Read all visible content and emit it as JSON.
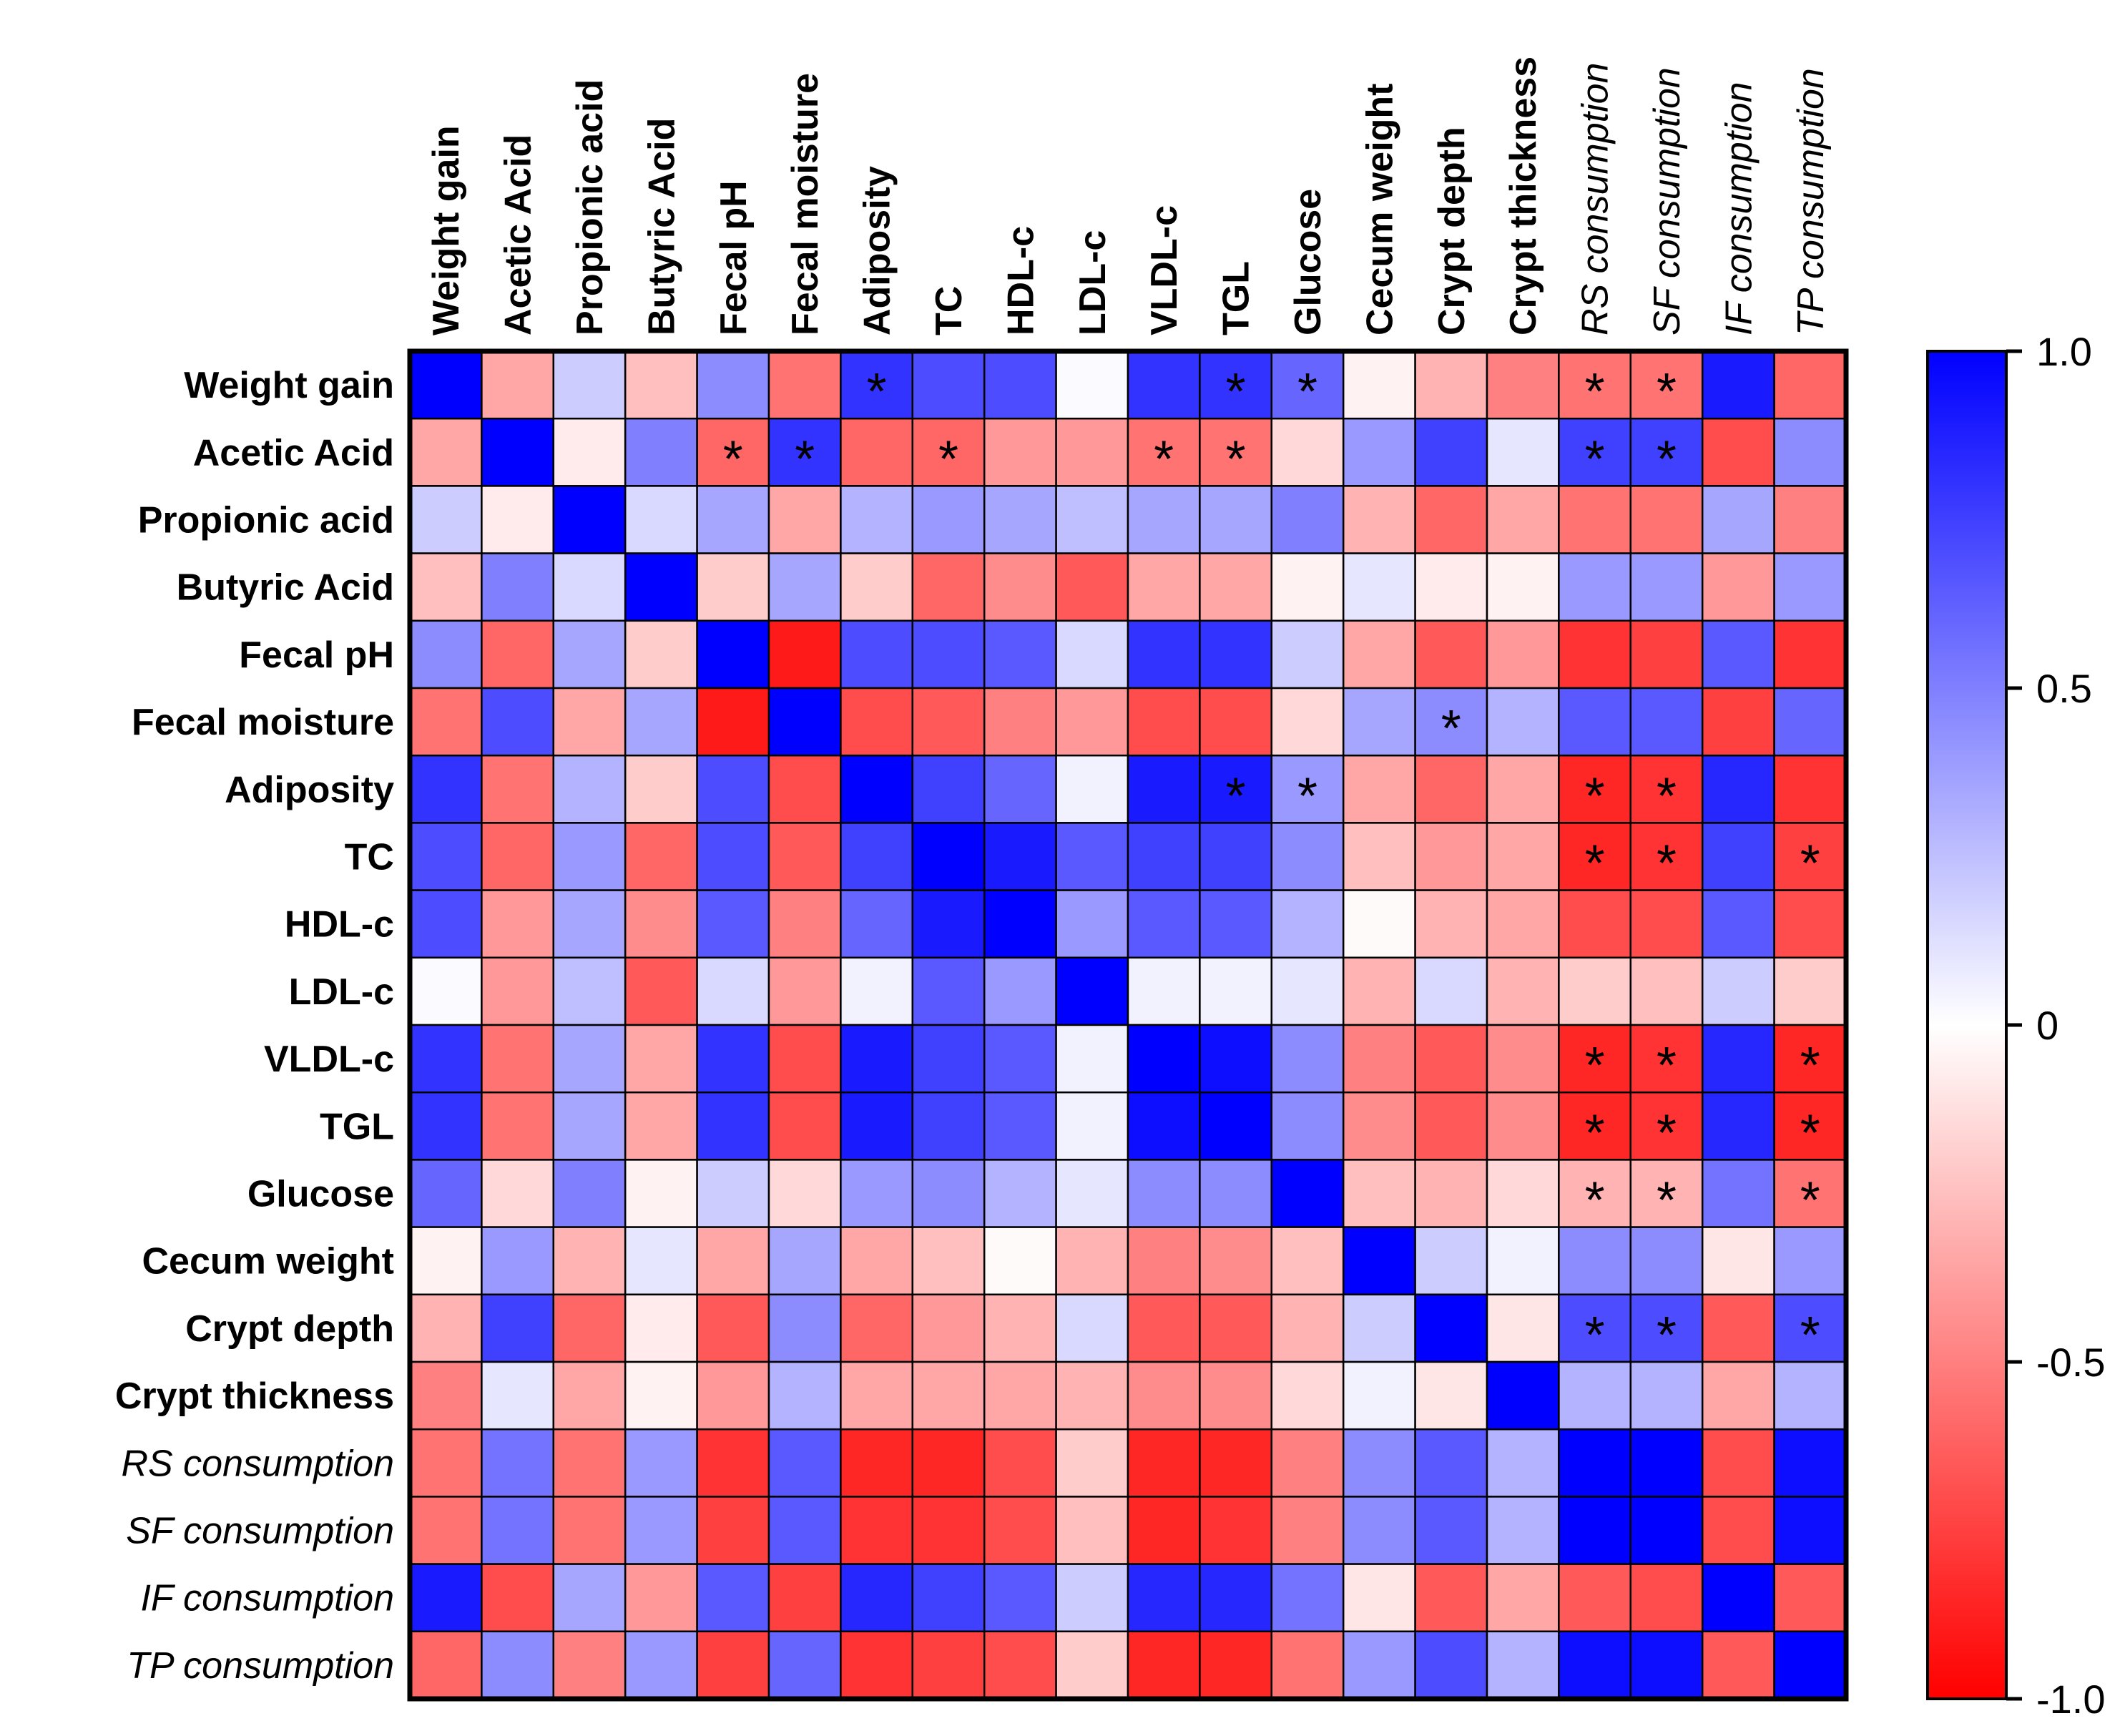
{
  "chart_data": {
    "type": "heatmap",
    "title": "",
    "labels": [
      "Weight gain",
      "Acetic Acid",
      "Propionic acid",
      "Butyric Acid",
      "Fecal pH",
      "Fecal moisture",
      "Adiposity",
      "TC",
      "HDL-c",
      "LDL-c",
      "VLDL-c",
      "TGL",
      "Glucose",
      "Cecum weight",
      "Crypt depth",
      "Crypt thickness",
      "RS consumption",
      "SF consumption",
      "IF consumption",
      "TP consumption"
    ],
    "italic_labels": [
      "RS consumption",
      "SF consumption",
      "IF consumption",
      "TP consumption"
    ],
    "values": [
      [
        1.0,
        -0.35,
        0.2,
        -0.25,
        0.45,
        -0.55,
        0.8,
        0.7,
        0.7,
        0.02,
        0.8,
        0.8,
        0.6,
        -0.05,
        -0.3,
        -0.5,
        -0.55,
        -0.55,
        0.9,
        -0.6
      ],
      [
        -0.35,
        1.0,
        -0.08,
        0.5,
        -0.6,
        0.8,
        -0.6,
        -0.6,
        -0.4,
        -0.4,
        -0.55,
        -0.55,
        -0.15,
        0.4,
        0.75,
        0.1,
        0.75,
        0.75,
        -0.7,
        0.45
      ],
      [
        0.2,
        -0.08,
        1.0,
        0.15,
        0.35,
        -0.35,
        0.3,
        0.4,
        0.35,
        0.25,
        0.35,
        0.35,
        0.5,
        -0.3,
        -0.6,
        -0.35,
        -0.55,
        -0.55,
        0.35,
        -0.5
      ],
      [
        -0.25,
        0.5,
        0.15,
        1.0,
        -0.2,
        0.35,
        -0.2,
        -0.6,
        -0.45,
        -0.65,
        -0.35,
        -0.35,
        -0.05,
        0.1,
        -0.08,
        -0.05,
        0.4,
        0.4,
        -0.4,
        0.4
      ],
      [
        0.45,
        -0.6,
        0.35,
        -0.2,
        1.0,
        -0.9,
        0.7,
        0.7,
        0.65,
        0.15,
        0.8,
        0.8,
        0.2,
        -0.35,
        -0.65,
        -0.4,
        -0.8,
        -0.75,
        0.65,
        -0.8
      ],
      [
        -0.55,
        0.7,
        -0.35,
        0.35,
        -0.9,
        1.0,
        -0.7,
        -0.65,
        -0.5,
        -0.4,
        -0.7,
        -0.7,
        -0.15,
        0.35,
        0.45,
        0.3,
        0.65,
        0.65,
        -0.75,
        0.6
      ],
      [
        0.8,
        -0.55,
        0.3,
        -0.2,
        0.7,
        -0.7,
        1.0,
        0.75,
        0.6,
        0.05,
        0.9,
        0.9,
        0.4,
        -0.35,
        -0.6,
        -0.35,
        -0.85,
        -0.8,
        0.85,
        -0.8
      ],
      [
        0.7,
        -0.6,
        0.4,
        -0.6,
        0.7,
        -0.65,
        0.75,
        1.0,
        0.9,
        0.65,
        0.75,
        0.75,
        0.45,
        -0.25,
        -0.4,
        -0.35,
        -0.85,
        -0.8,
        0.75,
        -0.75
      ],
      [
        0.7,
        -0.4,
        0.35,
        -0.45,
        0.65,
        -0.5,
        0.6,
        0.9,
        1.0,
        0.4,
        0.65,
        0.65,
        0.3,
        -0.02,
        -0.3,
        -0.35,
        -0.7,
        -0.7,
        0.65,
        -0.7
      ],
      [
        0.02,
        -0.4,
        0.25,
        -0.65,
        0.15,
        -0.4,
        0.05,
        0.65,
        0.4,
        1.0,
        0.05,
        0.05,
        0.1,
        -0.3,
        0.15,
        -0.3,
        -0.2,
        -0.25,
        0.2,
        -0.2
      ],
      [
        0.8,
        -0.55,
        0.35,
        -0.35,
        0.8,
        -0.7,
        0.9,
        0.75,
        0.65,
        0.05,
        1.0,
        0.95,
        0.45,
        -0.5,
        -0.65,
        -0.45,
        -0.85,
        -0.8,
        0.85,
        -0.85
      ],
      [
        0.8,
        -0.55,
        0.35,
        -0.35,
        0.8,
        -0.7,
        0.9,
        0.75,
        0.65,
        0.05,
        0.95,
        1.0,
        0.45,
        -0.45,
        -0.65,
        -0.45,
        -0.85,
        -0.8,
        0.85,
        -0.85
      ],
      [
        0.6,
        -0.15,
        0.5,
        -0.05,
        0.2,
        -0.15,
        0.4,
        0.45,
        0.3,
        0.1,
        0.45,
        0.45,
        1.0,
        -0.25,
        -0.3,
        -0.15,
        -0.3,
        -0.3,
        0.55,
        -0.55
      ],
      [
        -0.05,
        0.4,
        -0.3,
        0.1,
        -0.35,
        0.35,
        -0.35,
        -0.25,
        -0.02,
        -0.3,
        -0.5,
        -0.45,
        -0.25,
        1.0,
        0.2,
        0.05,
        0.45,
        0.45,
        -0.1,
        0.4
      ],
      [
        -0.3,
        0.75,
        -0.6,
        -0.08,
        -0.65,
        0.45,
        -0.6,
        -0.4,
        -0.3,
        0.15,
        -0.65,
        -0.65,
        -0.3,
        0.2,
        1.0,
        -0.1,
        0.7,
        0.7,
        -0.65,
        0.7
      ],
      [
        -0.5,
        0.1,
        -0.35,
        -0.05,
        -0.4,
        0.3,
        -0.35,
        -0.35,
        -0.35,
        -0.3,
        -0.45,
        -0.45,
        -0.15,
        0.05,
        -0.1,
        1.0,
        0.3,
        0.3,
        -0.35,
        0.3
      ],
      [
        -0.55,
        0.55,
        -0.55,
        0.4,
        -0.8,
        0.65,
        -0.85,
        -0.85,
        -0.7,
        -0.2,
        -0.85,
        -0.85,
        -0.5,
        0.45,
        0.65,
        0.3,
        1.0,
        1.0,
        -0.7,
        0.95
      ],
      [
        -0.55,
        0.55,
        -0.55,
        0.4,
        -0.75,
        0.65,
        -0.8,
        -0.8,
        -0.7,
        -0.25,
        -0.85,
        -0.8,
        -0.5,
        0.45,
        0.65,
        0.3,
        1.0,
        1.0,
        -0.7,
        0.95
      ],
      [
        0.9,
        -0.7,
        0.35,
        -0.4,
        0.65,
        -0.75,
        0.85,
        0.75,
        0.65,
        0.2,
        0.85,
        0.85,
        0.55,
        -0.1,
        -0.65,
        -0.35,
        -0.65,
        -0.7,
        1.0,
        -0.65
      ],
      [
        -0.6,
        0.45,
        -0.5,
        0.4,
        -0.75,
        0.6,
        -0.8,
        -0.75,
        -0.7,
        -0.2,
        -0.85,
        -0.85,
        -0.55,
        0.4,
        0.7,
        0.3,
        0.95,
        0.95,
        -0.65,
        1.0
      ]
    ],
    "significant_marker": "*",
    "significant_cells": [
      [
        0,
        6
      ],
      [
        0,
        11
      ],
      [
        0,
        12
      ],
      [
        0,
        16
      ],
      [
        0,
        17
      ],
      [
        1,
        4
      ],
      [
        1,
        5
      ],
      [
        1,
        7
      ],
      [
        1,
        10
      ],
      [
        1,
        11
      ],
      [
        1,
        16
      ],
      [
        1,
        17
      ],
      [
        5,
        14
      ],
      [
        6,
        11
      ],
      [
        6,
        12
      ],
      [
        6,
        16
      ],
      [
        6,
        17
      ],
      [
        7,
        16
      ],
      [
        7,
        17
      ],
      [
        7,
        19
      ],
      [
        10,
        16
      ],
      [
        10,
        17
      ],
      [
        10,
        19
      ],
      [
        11,
        16
      ],
      [
        11,
        17
      ],
      [
        11,
        19
      ],
      [
        12,
        16
      ],
      [
        12,
        17
      ],
      [
        12,
        19
      ],
      [
        14,
        16
      ],
      [
        14,
        17
      ],
      [
        14,
        19
      ]
    ],
    "colorbar": {
      "range": [
        -1.0,
        1.0
      ],
      "ticks": [
        1.0,
        0.5,
        0,
        -0.5,
        -1.0
      ],
      "tick_labels": [
        "1.0",
        "0.5",
        "0",
        "-0.5",
        "-1.0"
      ],
      "high_color": "#0000ff",
      "mid_color": "#ffffff",
      "low_color": "#ff0000"
    }
  }
}
